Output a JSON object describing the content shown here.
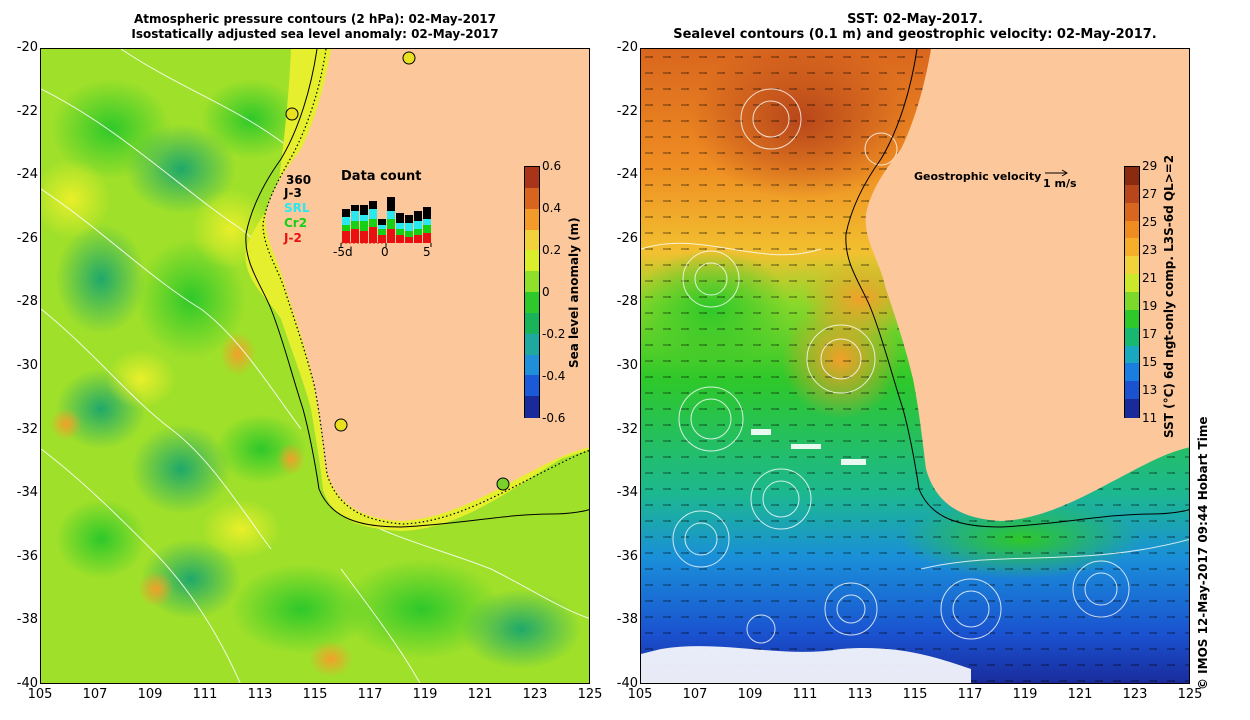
{
  "left_panel": {
    "title_line1": "Atmospheric pressure contours (2 hPa): 02-May-2017",
    "title_line2": "Isostatically adjusted sea level anomaly: 02-May-2017",
    "colorbar": {
      "label": "Sea level anomaly (m)",
      "ticks": [
        "0.6",
        "0.4",
        "0.2",
        "0",
        "-0.2",
        "-0.4",
        "-0.6"
      ],
      "colors": [
        "#a8341a",
        "#d9641e",
        "#f29a2a",
        "#f2d23a",
        "#d9ef2a",
        "#8fe02a",
        "#2ec82a",
        "#19b45a",
        "#1fa8a0",
        "#1f8fd9",
        "#1a5ad9",
        "#1a2a9a"
      ]
    },
    "inset": {
      "title": "Data count",
      "max_count": "360",
      "missions": [
        {
          "name": "J-3",
          "color": "#000000"
        },
        {
          "name": "SRL",
          "color": "#29e8f0"
        },
        {
          "name": "Cr2",
          "color": "#16d016"
        },
        {
          "name": "J-2",
          "color": "#e81010"
        }
      ],
      "x_ticks": [
        "-5d",
        "0",
        "5"
      ]
    },
    "tide_gauge_color": "#e8e020"
  },
  "right_panel": {
    "title_line1": "SST: 02-May-2017.",
    "title_line2": "Sealevel contours (0.1 m) and geostrophic velocity: 02-May-2017.",
    "colorbar": {
      "label": "SST (°C) 6d ngt-only comp. L3S-6d QL>=2",
      "ticks": [
        "29",
        "27",
        "25",
        "23",
        "21",
        "19",
        "17",
        "15",
        "13",
        "11"
      ],
      "colors": [
        "#8a2a10",
        "#b8461a",
        "#d9661e",
        "#ee8c22",
        "#f5ad2a",
        "#f2d23a",
        "#cce82a",
        "#7cd82a",
        "#2ec82a",
        "#18b870",
        "#1aa8c0",
        "#1a7ee0",
        "#1a52d0",
        "#1a2a9a"
      ]
    },
    "velocity_legend": "Geostrophic velocity",
    "velocity_scale": "1 m/s"
  },
  "axes": {
    "y_ticks": [
      "-20",
      "-22",
      "-24",
      "-26",
      "-28",
      "-30",
      "-32",
      "-34",
      "-36",
      "-38",
      "-40"
    ],
    "x_ticks": [
      "105",
      "107",
      "109",
      "111",
      "113",
      "115",
      "117",
      "119",
      "121",
      "123",
      "125"
    ]
  },
  "land_color": "#fcc89b",
  "credit": "© IMOS 12-May-2017 09:44 Hobart Time"
}
